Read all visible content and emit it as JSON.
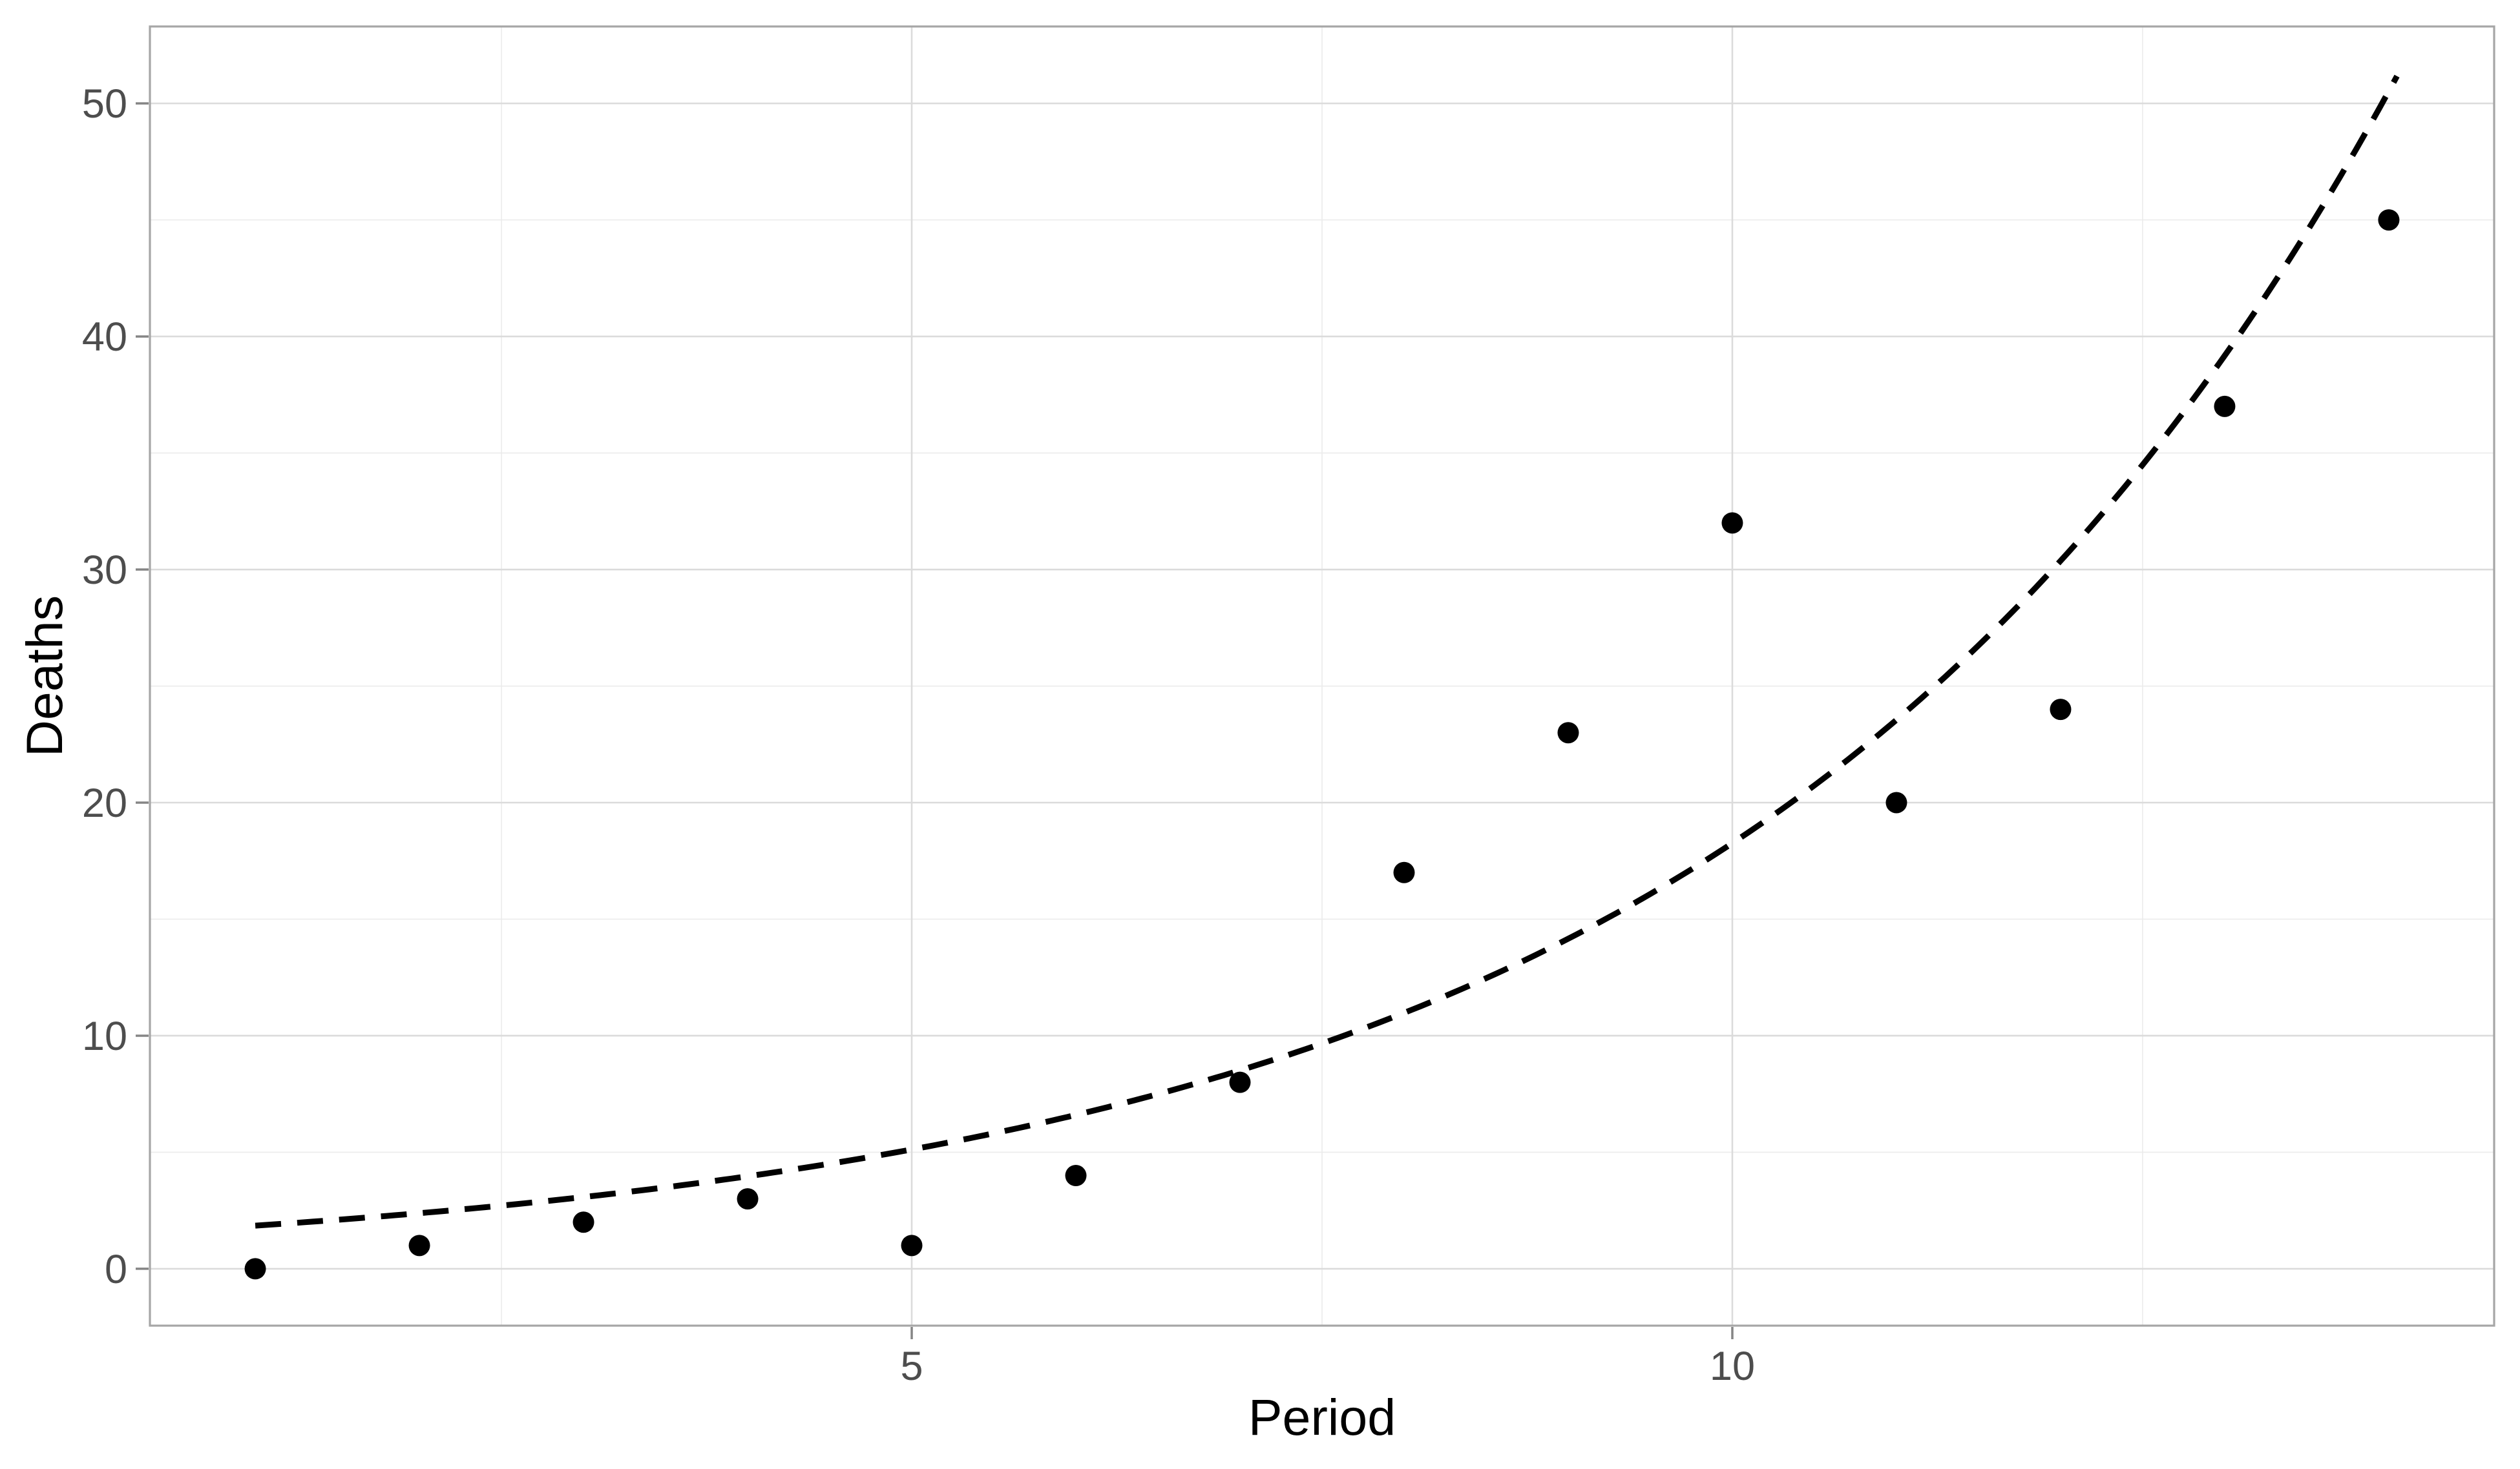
{
  "chart_data": {
    "type": "scatter",
    "title": "",
    "points": {
      "x": [
        1,
        2,
        3,
        4,
        5,
        6,
        7,
        8,
        9,
        10,
        11,
        12,
        13,
        14
      ],
      "y": [
        0,
        1,
        2,
        3,
        1,
        4,
        8,
        17,
        23,
        32,
        20,
        24,
        37,
        45
      ]
    },
    "x_axis": {
      "label": "Period",
      "lim": [
        0.358,
        14.642
      ],
      "major_ticks": [
        5,
        10
      ],
      "tick_labels": [
        "5",
        "10"
      ],
      "minor_ticks": [
        2.5,
        7.5,
        12.5
      ]
    },
    "y_axis": {
      "label": "Deaths",
      "lim": [
        -2.44,
        53.3
      ],
      "major_ticks": [
        0,
        10,
        20,
        30,
        40,
        50
      ],
      "tick_labels": [
        "0",
        "10",
        "20",
        "30",
        "40",
        "50"
      ],
      "minor_ticks": [
        5,
        15,
        25,
        35,
        45
      ],
      "ylim_data": [
        0,
        45
      ]
    },
    "fit_line": {
      "model": "exponential",
      "equation": "y = 1.4345 * exp(0.2544 * x)",
      "a": 1.4345,
      "b": 0.2544,
      "x_start": 1.0,
      "x_end": 14.05,
      "style": "dashed"
    },
    "grid": "major+minor",
    "legend": "none",
    "colors": {
      "background": "#FFFFFF",
      "panel_background": "#FFFFFF",
      "panel_border": "#A6A6A6",
      "grid_major": "#DBDBDB",
      "grid_minor": "#EBEBEB",
      "tick_mark": "#858585",
      "tick_label": "#4D4D4D",
      "axis_title": "#000000",
      "point": "#000000",
      "fit_line": "#000000"
    }
  }
}
